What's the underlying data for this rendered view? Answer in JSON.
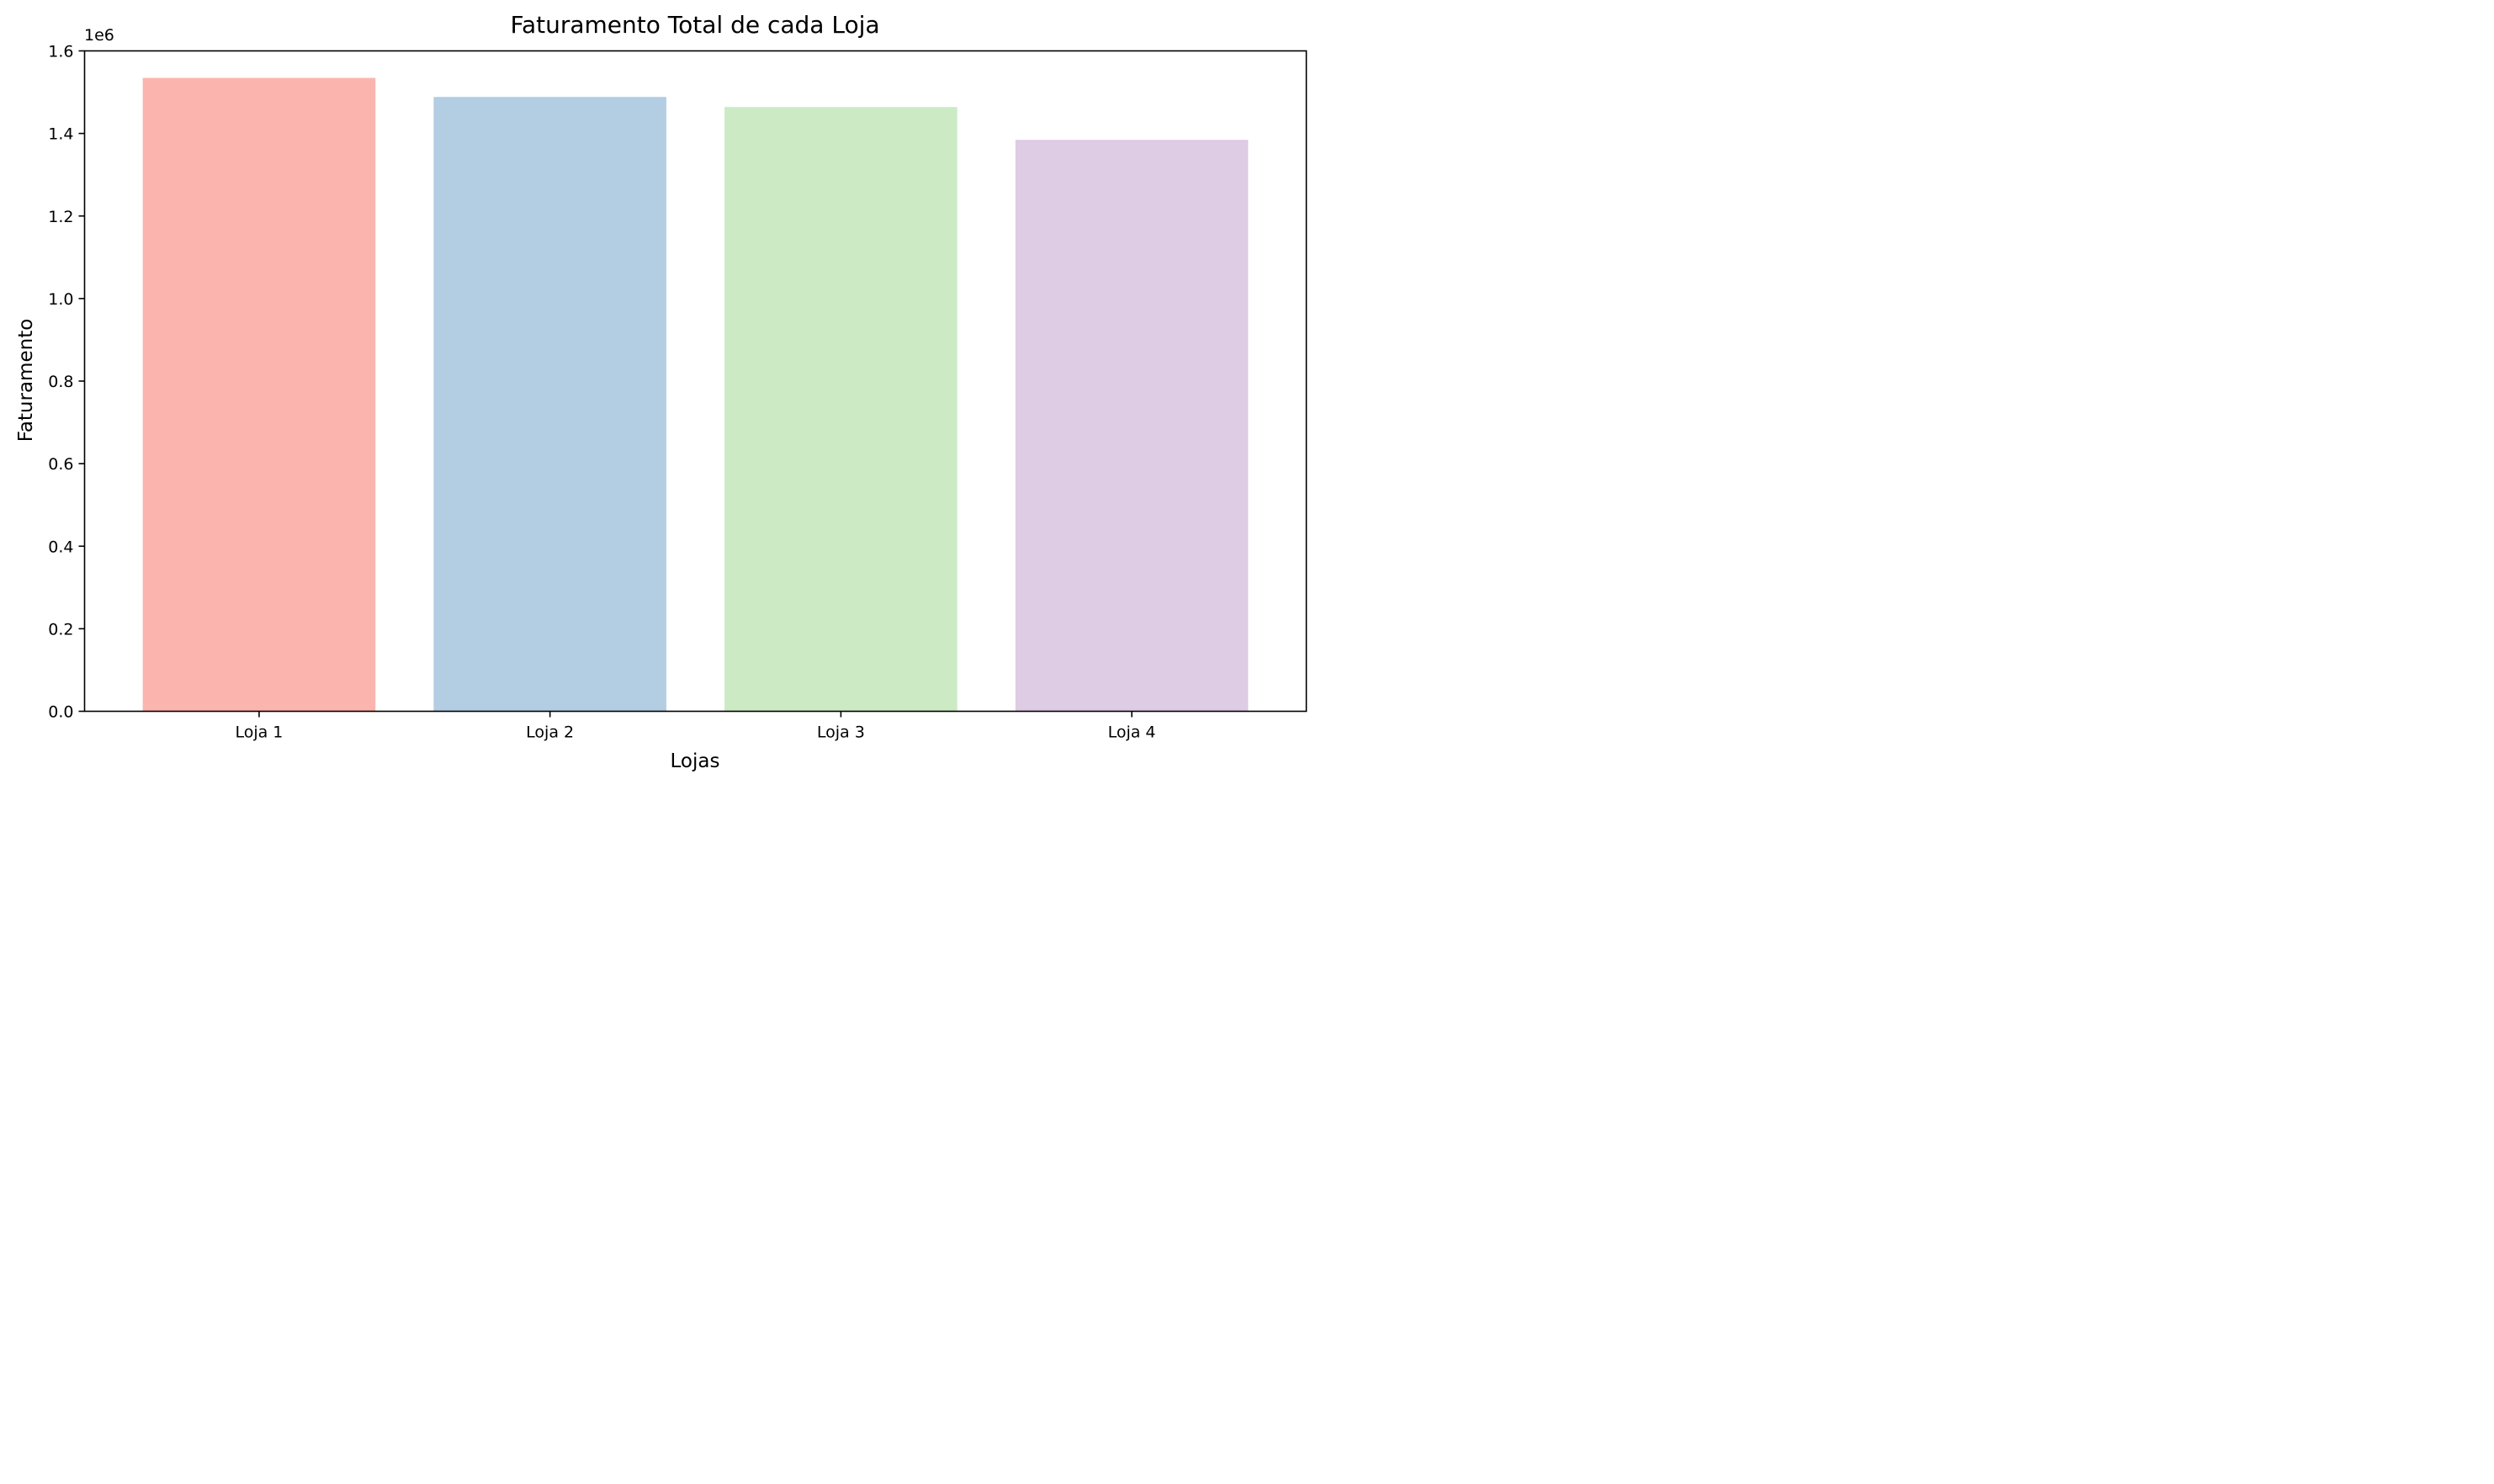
{
  "chart_data": {
    "type": "bar",
    "title": "Faturamento Total de cada Loja",
    "xlabel": "Lojas",
    "ylabel": "Faturamento",
    "offset_label": "1e6",
    "categories": [
      "Loja 1",
      "Loja 2",
      "Loja 3",
      "Loja 4"
    ],
    "values": [
      1534509,
      1488459,
      1464026,
      1384497
    ],
    "colors": [
      "#fbb4ae",
      "#b3cde3",
      "#ccebc5",
      "#decbe4"
    ],
    "ylim": [
      0,
      1600000
    ],
    "yticks": [
      0,
      200000,
      400000,
      600000,
      800000,
      1000000,
      1200000,
      1400000,
      1600000
    ],
    "ytick_labels": [
      "0.0",
      "0.2",
      "0.4",
      "0.6",
      "0.8",
      "1.0",
      "1.2",
      "1.4",
      "1.6"
    ],
    "grid": false,
    "legend": false
  }
}
